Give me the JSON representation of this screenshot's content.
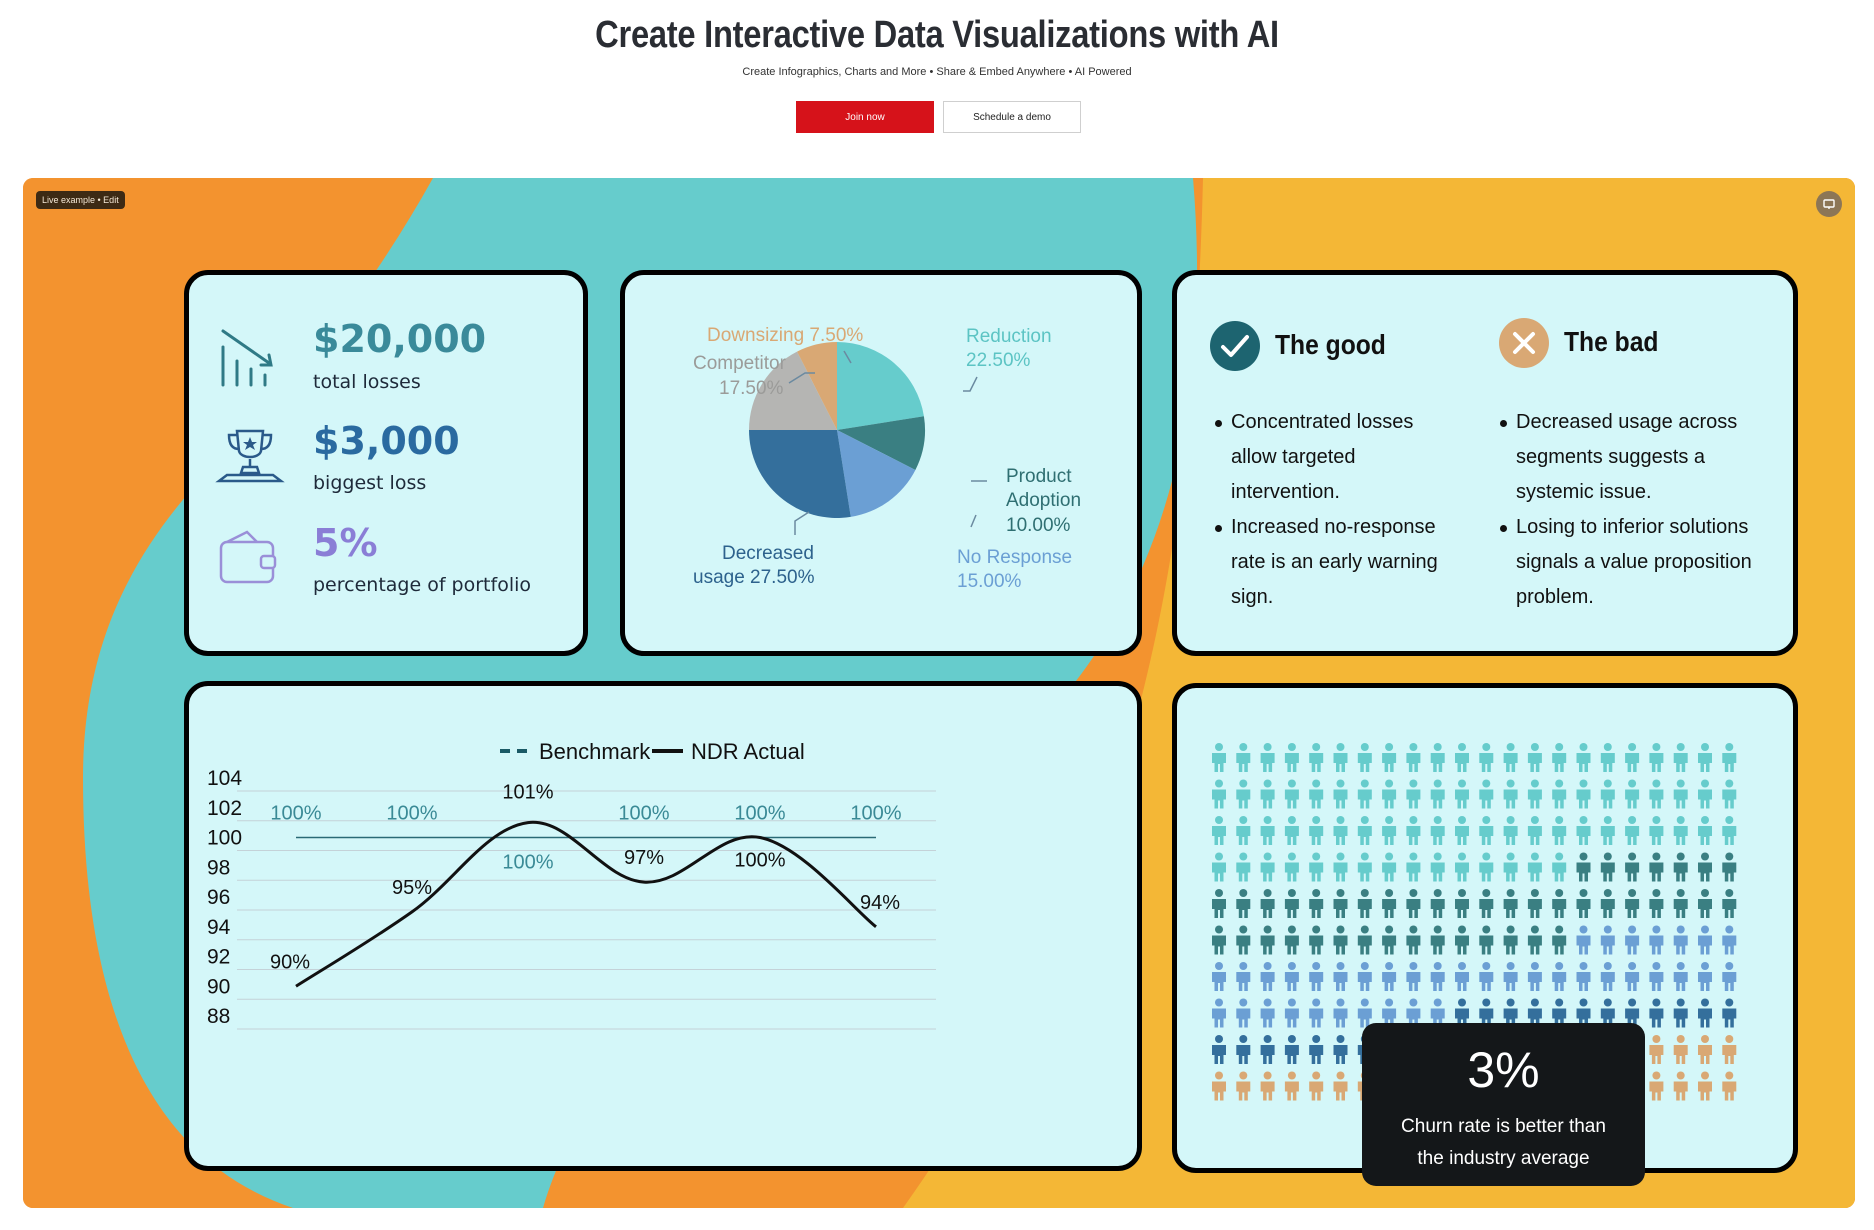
{
  "hero": {
    "title": "Create Interactive Data Visualizations with AI",
    "subtitle": "Create Infographics, Charts and More • Share & Embed Anywhere • AI Powered",
    "join_label": "Join now",
    "demo_label": "Schedule a demo"
  },
  "canvas": {
    "badge": "Live example • Edit",
    "present_icon": "present-icon",
    "colors": {
      "orange": "#f3932f",
      "yellow": "#f4b736",
      "teal": "#66cccc",
      "card": "#d4f7f9"
    }
  },
  "stats": [
    {
      "icon": "trend-down-icon",
      "value": "$20,000",
      "label": "total losses",
      "color": "#3a8a9a"
    },
    {
      "icon": "trophy-icon",
      "value": "$3,000",
      "label": "biggest loss",
      "color": "#2a6aa0"
    },
    {
      "icon": "wallet-icon",
      "value": "5%",
      "label": "percentage of portfolio",
      "color": "#8a7ed6"
    }
  ],
  "pie_chart": {
    "chart_data": {
      "type": "pie",
      "slices": [
        {
          "name": "Reduction",
          "value_label": "22.50%",
          "value": 22.5,
          "color": "#66cccc"
        },
        {
          "name": "Product Adoption",
          "value_label": "10.00%",
          "value": 10.0,
          "color": "#3a7f82"
        },
        {
          "name": "No Response",
          "value_label": "15.00%",
          "value": 15.0,
          "color": "#6b9fd4"
        },
        {
          "name": "Decreased usage",
          "value_label": "27.50%",
          "value": 27.5,
          "color": "#346f9c"
        },
        {
          "name": "Competitor",
          "value_label": "17.50%",
          "value": 17.5,
          "color": "#b5b5b3"
        },
        {
          "name": "Downsizing",
          "value_label": "7.50%",
          "value": 7.5,
          "color": "#d9a874"
        }
      ]
    },
    "labels": {
      "downsizing": "Downsizing 7.50%",
      "competitor_1": "Competitor",
      "competitor_2": "17.50%",
      "reduction_1": "Reduction",
      "reduction_2": "22.50%",
      "product_1": "Product",
      "product_2": "Adoption",
      "product_3": "10.00%",
      "decreased_1": "Decreased",
      "decreased_2": "usage 27.50%",
      "noresp_1": "No Response",
      "noresp_2": "15.00%"
    }
  },
  "good_bad": {
    "good_title": "The good",
    "bad_title": "The bad",
    "good_icon": "check-icon",
    "bad_icon": "x-icon",
    "good_items": [
      [
        "Concentrated losses",
        "allow targeted",
        "intervention."
      ],
      [
        "Increased no-response",
        "rate is an early warning",
        "sign."
      ]
    ],
    "bad_items": [
      [
        "Decreased usage across",
        "segments suggests a",
        "systemic issue."
      ],
      [
        "Losing to inferior solutions",
        "signals a value proposition",
        "problem."
      ]
    ]
  },
  "line_chart": {
    "chart_data": {
      "type": "line",
      "y_ticks": [
        "104",
        "102",
        "100",
        "98",
        "96",
        "94",
        "92",
        "90",
        "88"
      ],
      "ylim": [
        88,
        104
      ],
      "series": [
        {
          "name": "Benchmark",
          "style": "dashed",
          "color": "#1a5a66",
          "values": [
            100,
            100,
            100,
            100,
            100,
            100
          ],
          "labels": [
            "100%",
            "100%",
            "100%",
            "100%",
            "100%",
            "100%"
          ]
        },
        {
          "name": "NDR Actual",
          "style": "solid",
          "color": "#111111",
          "values": [
            90,
            95,
            101,
            97,
            100,
            94
          ],
          "labels": [
            "90%",
            "95%",
            "101%",
            "97%",
            "100%",
            "94%"
          ]
        }
      ]
    }
  },
  "churn": {
    "value": "3%",
    "text_line1": "Churn rate is better than",
    "text_line2": "the industry average",
    "grid": {
      "rows": 10,
      "cols": 22
    },
    "colors": [
      "#66cccc",
      "#3a7f82",
      "#6b9fd4",
      "#346f9c",
      "#d9a874"
    ]
  }
}
